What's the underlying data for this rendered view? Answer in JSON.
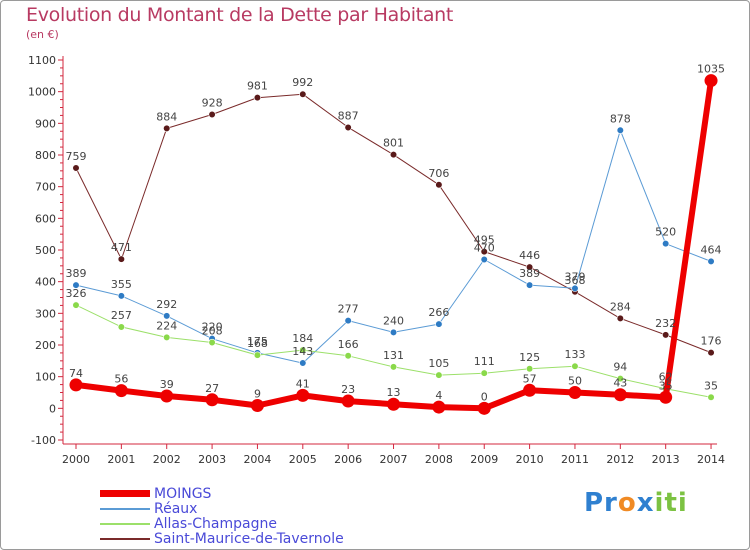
{
  "header": {
    "title": "Evolution du Montant de la Dette par Habitant",
    "unit": "(en €)"
  },
  "logo": {
    "parts": [
      "Pr",
      "o",
      "x",
      "iti"
    ],
    "colors": [
      "#2f80d0",
      "#f08a24",
      "#2f80d0",
      "#7cc242"
    ]
  },
  "chart_data": {
    "type": "line",
    "title": "Evolution du Montant de la Dette par Habitant",
    "ylabel": "(en €)",
    "xlabel": "",
    "ylim": [
      -100,
      1100
    ],
    "yticks": [
      -100,
      0,
      100,
      200,
      300,
      400,
      500,
      600,
      700,
      800,
      900,
      1000,
      1100
    ],
    "categories": [
      "2000",
      "2001",
      "2002",
      "2003",
      "2004",
      "2005",
      "2006",
      "2007",
      "2008",
      "2009",
      "2010",
      "2011",
      "2012",
      "2013",
      "2014"
    ],
    "grid": false,
    "legend_position": "bottom-left",
    "series": [
      {
        "name": "Saint-Maurice-de-Tavernole",
        "color": "#7a2a2a",
        "marker": "#5a1a1a",
        "width": 1,
        "values": [
          759,
          471,
          884,
          928,
          981,
          992,
          887,
          801,
          706,
          495,
          446,
          368,
          284,
          232,
          176
        ]
      },
      {
        "name": "Réaux",
        "color": "#5b9bd5",
        "marker": "#2e7bc4",
        "width": 1,
        "values": [
          389,
          355,
          292,
          220,
          175,
          143,
          277,
          240,
          266,
          470,
          389,
          379,
          878,
          520,
          464
        ]
      },
      {
        "name": "Allas-Champagne",
        "color": "#9ce06a",
        "marker": "#8ad94a",
        "width": 1,
        "values": [
          326,
          257,
          224,
          208,
          168,
          184,
          166,
          131,
          105,
          111,
          125,
          133,
          94,
          62,
          35
        ]
      },
      {
        "name": "MOINGS",
        "color": "#ee0000",
        "marker": "#ee0000",
        "width": 6,
        "values": [
          74,
          56,
          39,
          27,
          9,
          41,
          23,
          13,
          4,
          0,
          57,
          50,
          43,
          35,
          1035
        ]
      }
    ],
    "legend_order": [
      "MOINGS",
      "Réaux",
      "Allas-Champagne",
      "Saint-Maurice-de-Tavernole"
    ]
  }
}
